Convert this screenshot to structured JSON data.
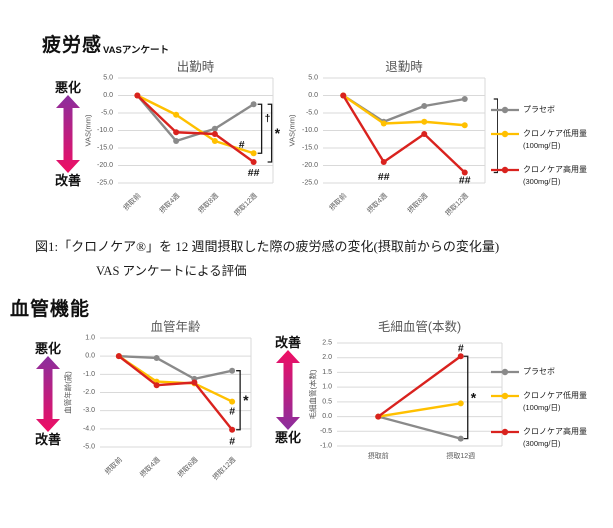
{
  "colors": {
    "placebo": "#8a8a8a",
    "low_dose": "#ffc000",
    "high_dose": "#d9221e",
    "grid": "#d9d9d9",
    "tick_text": "#595959",
    "chart_title_text": "#595959",
    "annotation_text": "#111111",
    "arrow_purple": "#8a2f9e",
    "arrow_pink": "#ef0e63"
  },
  "section_fatigue": {
    "title": "疲労感",
    "subtitle": "VASアンケート"
  },
  "section_vascular": {
    "title": "血管機能"
  },
  "indicators": [
    {
      "top": "悪化",
      "bottom": "改善",
      "reversed": false
    },
    {
      "top": "悪化",
      "bottom": "改善",
      "reversed": false
    },
    {
      "top": "改善",
      "bottom": "悪化",
      "reversed": true
    }
  ],
  "legend": {
    "items": [
      {
        "label": "プラセボ",
        "sublabel": "",
        "color_key": "placebo"
      },
      {
        "label": "クロノケア低用量",
        "sublabel": "(100mg/日)",
        "color_key": "low_dose"
      },
      {
        "label": "クロノケア高用量",
        "sublabel": "(300mg/日)",
        "color_key": "high_dose"
      }
    ]
  },
  "caption": {
    "line1": "図1:「クロノケア®」を 12 週間摂取した際の疲労感の変化(摂取前からの変化量)",
    "line2": "VAS アンケートによる評価"
  },
  "chart_data": [
    {
      "type": "line",
      "title": "出勤時",
      "ylabel": "VAS(mm)",
      "categories": [
        "摂取前",
        "摂取4週",
        "摂取8週",
        "摂取12週"
      ],
      "ylim": [
        -25,
        5
      ],
      "ytick_step": 5,
      "grid": true,
      "series": [
        {
          "name": "プラセボ",
          "values": [
            0,
            -13,
            -9.5,
            -2.5
          ]
        },
        {
          "name": "クロノケア低用量(100mg/日)",
          "values": [
            0,
            -5.5,
            -13,
            -16.5
          ]
        },
        {
          "name": "クロノケア高用量(300mg/日)",
          "values": [
            0,
            -10.5,
            -11,
            -19
          ]
        }
      ],
      "annotations": [
        {
          "text": "#",
          "x": 3,
          "y": -14.2,
          "dx": -12
        },
        {
          "text": "##",
          "x": 3,
          "y": -22.2
        }
      ],
      "brackets": [
        {
          "from": -2.5,
          "to": -16.5,
          "offset": 8,
          "label": "†",
          "label_y": -6.5
        },
        {
          "from": -2.5,
          "to": -19,
          "offset": 18,
          "label": "*"
        }
      ]
    },
    {
      "type": "line",
      "title": "退勤時",
      "ylabel": "VAS(mm)",
      "categories": [
        "摂取前",
        "摂取4週",
        "摂取8週",
        "摂取12週"
      ],
      "ylim": [
        -25,
        5
      ],
      "ytick_step": 5,
      "grid": true,
      "series": [
        {
          "name": "プラセボ",
          "values": [
            0,
            -7.5,
            -3,
            -1
          ]
        },
        {
          "name": "クロノケア低用量(100mg/日)",
          "values": [
            0,
            -8,
            -7.5,
            -8.5
          ]
        },
        {
          "name": "クロノケア高用量(300mg/日)",
          "values": [
            0,
            -19,
            -11,
            -22
          ]
        }
      ],
      "annotations": [
        {
          "text": "##",
          "x": 1,
          "y": -23.3
        },
        {
          "text": "##",
          "x": 3,
          "y": -24.3
        }
      ],
      "brackets": [
        {
          "from": -1,
          "to": -22,
          "offset": 33,
          "label": "*"
        }
      ]
    },
    {
      "type": "line",
      "title": "血管年齢",
      "ylabel": "血管年齢(歳)",
      "categories": [
        "摂取前",
        "摂取4週",
        "摂取8週",
        "摂取12週"
      ],
      "ylim": [
        -5,
        1
      ],
      "ytick_step": 1,
      "grid": true,
      "series": [
        {
          "name": "プラセボ",
          "values": [
            0,
            -0.1,
            -1.25,
            -0.8
          ]
        },
        {
          "name": "クロノケア低用量(100mg/日)",
          "values": [
            0,
            -1.4,
            -1.5,
            -2.5
          ]
        },
        {
          "name": "クロノケア高用量(300mg/日)",
          "values": [
            0,
            -1.6,
            -1.45,
            -4.05
          ]
        }
      ],
      "annotations": [
        {
          "text": "#",
          "x": 3,
          "y": -3.05
        },
        {
          "text": "#",
          "x": 3,
          "y": -4.7
        }
      ],
      "brackets": [
        {
          "from": -0.8,
          "to": -4.05,
          "offset": 8,
          "label": "*"
        }
      ]
    },
    {
      "type": "line",
      "title": "毛細血管(本数)",
      "ylabel": "毛細血管(本数)",
      "categories": [
        "摂取前",
        "摂取12週"
      ],
      "ylim": [
        -1,
        2.5
      ],
      "ytick_step": 0.5,
      "grid": true,
      "series": [
        {
          "name": "プラセボ",
          "values": [
            0,
            -0.75
          ]
        },
        {
          "name": "クロノケア低用量(100mg/日)",
          "values": [
            0,
            0.45
          ]
        },
        {
          "name": "クロノケア高用量(300mg/日)",
          "values": [
            0,
            2.05
          ]
        }
      ],
      "annotations": [
        {
          "text": "#",
          "x": 1,
          "y": 2.32
        }
      ],
      "brackets": [
        {
          "from": 2.05,
          "to": -0.75,
          "offset": 7,
          "label": "*"
        }
      ]
    }
  ]
}
